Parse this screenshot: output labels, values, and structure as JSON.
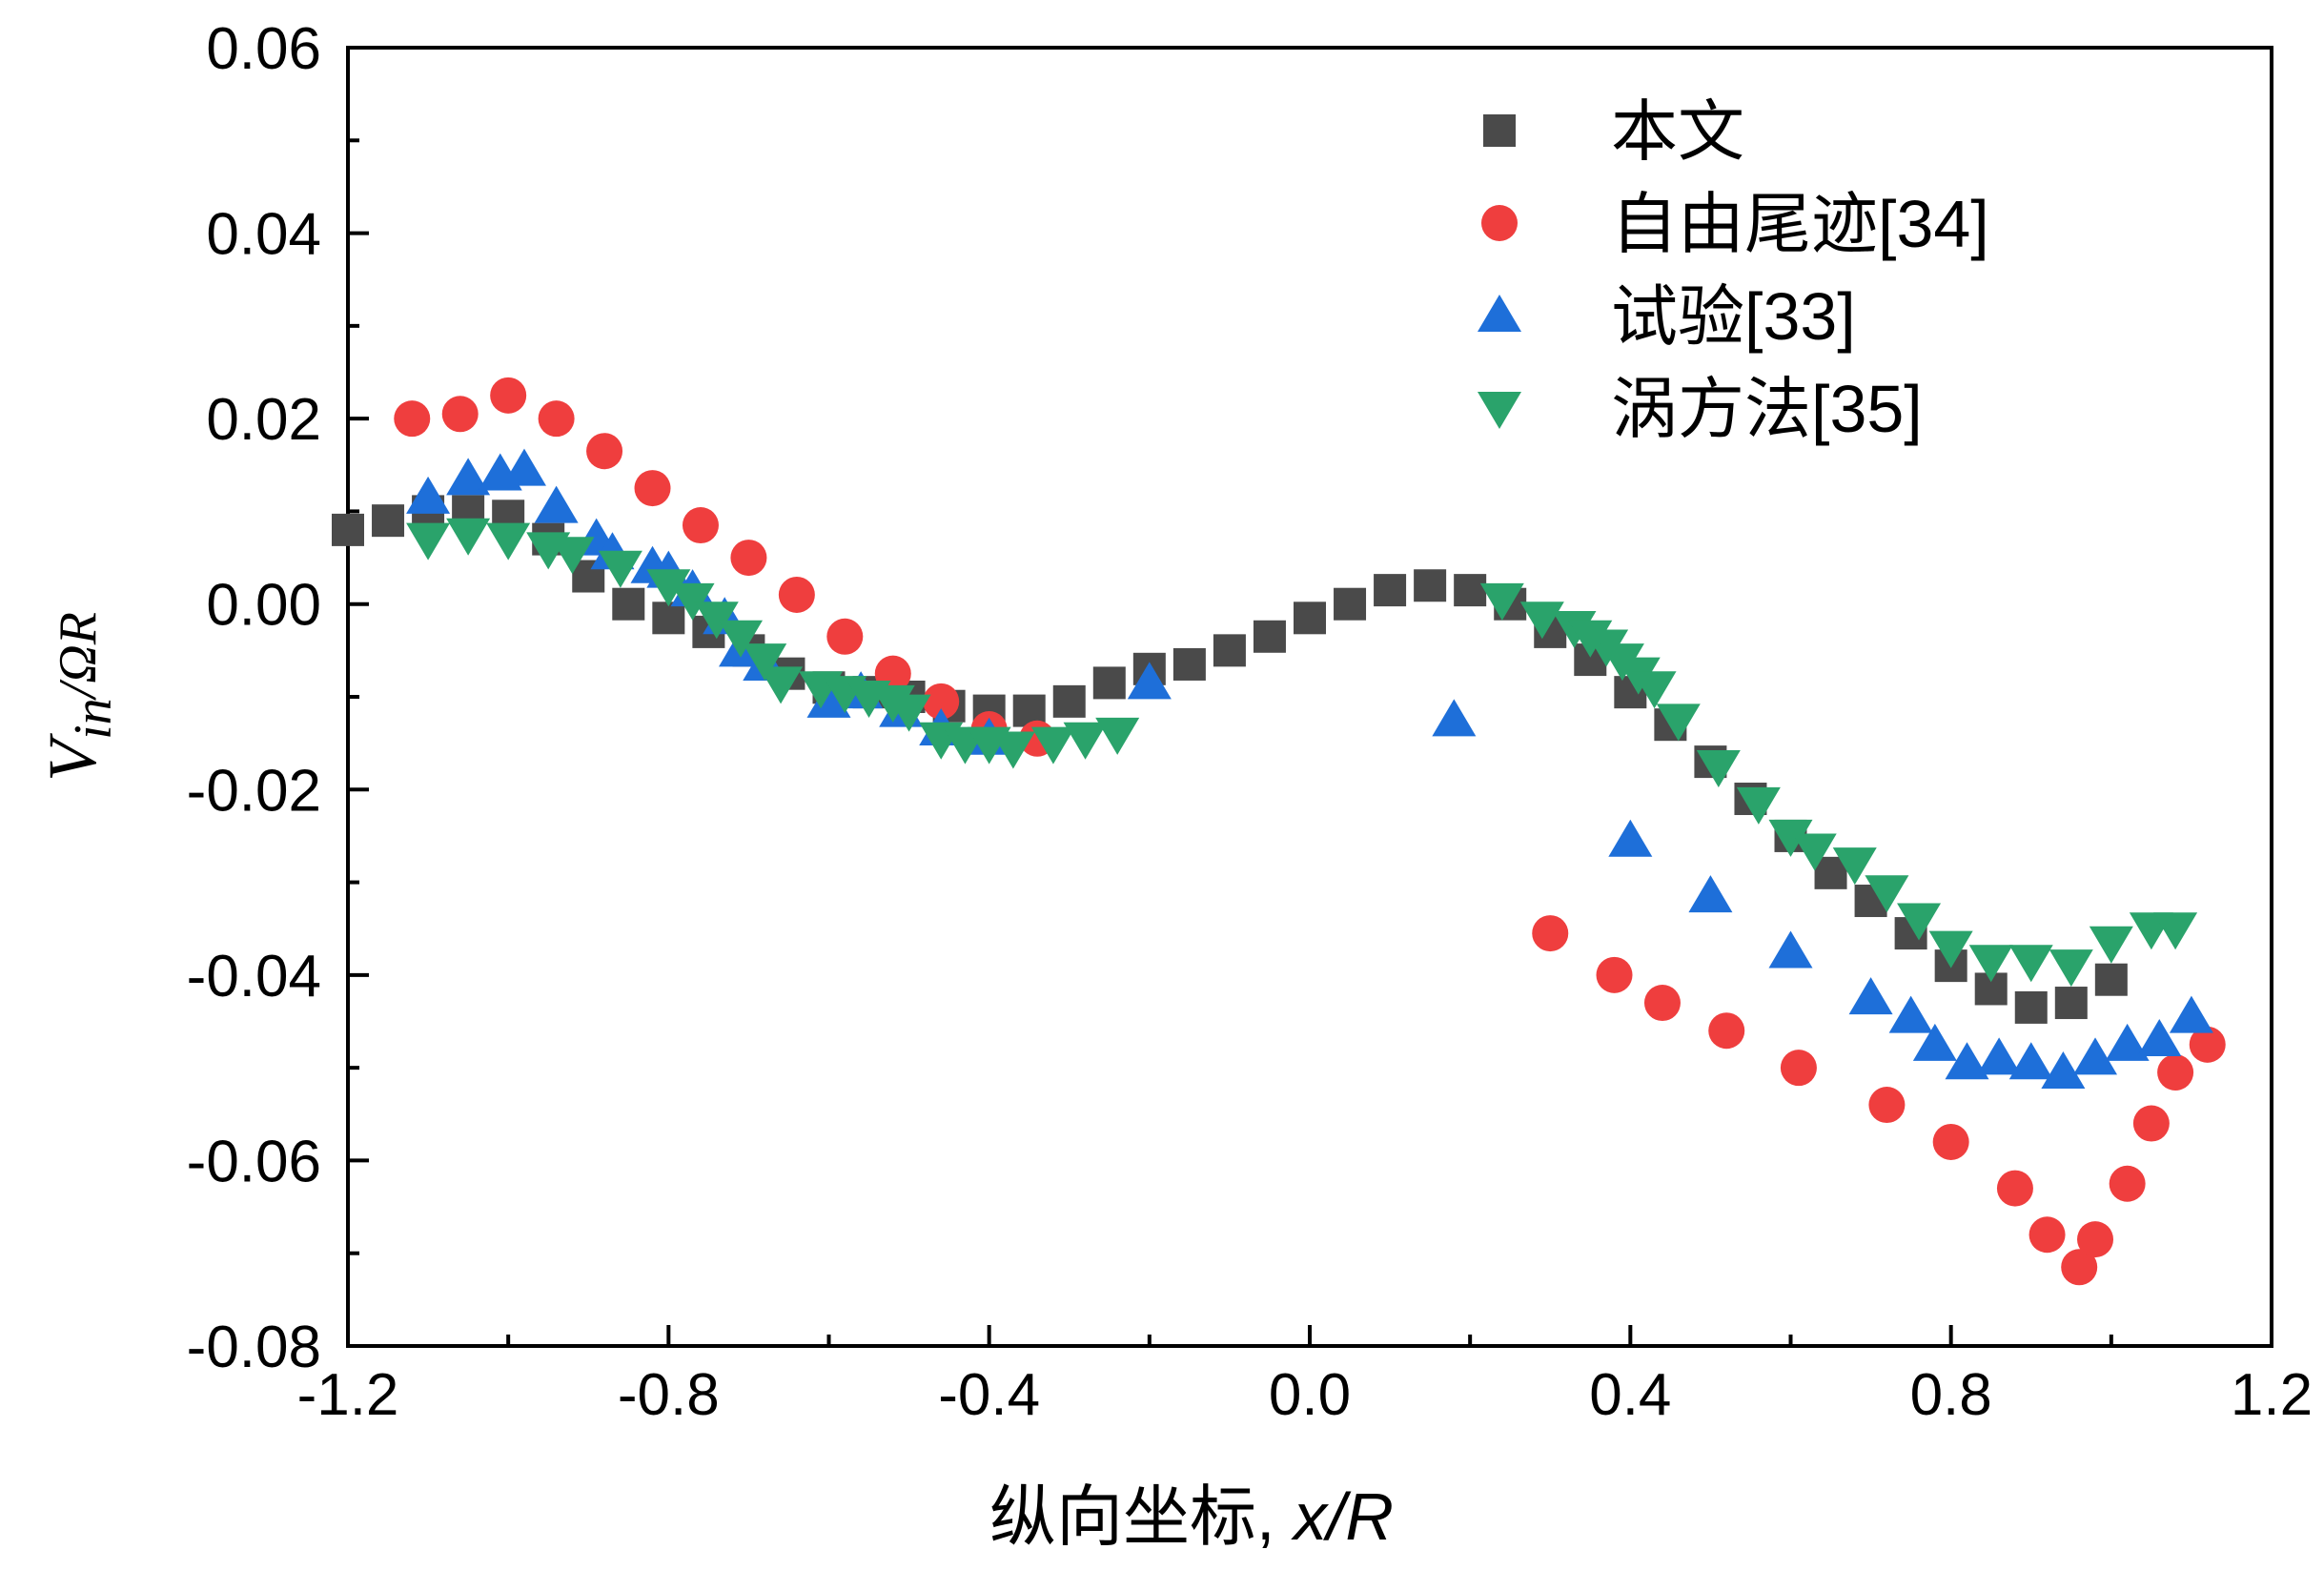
{
  "chart_data": {
    "type": "scatter",
    "xlabel_prefix": "纵向坐标, ",
    "xlabel_var": "x/R",
    "ylabel": {
      "main": "V",
      "sub": "in",
      "tail": "/ΩR"
    },
    "xlim": [
      -1.2,
      1.2
    ],
    "ylim": [
      -0.08,
      0.06
    ],
    "xticks": [
      "-1.2",
      "-0.8",
      "-0.4",
      "0.0",
      "0.4",
      "0.8",
      "1.2"
    ],
    "yticks": [
      "0.06",
      "0.04",
      "0.02",
      "0.00",
      "-0.02",
      "-0.04",
      "-0.06",
      "-0.08"
    ],
    "xtick_values": [
      -1.2,
      -0.8,
      -0.4,
      0.0,
      0.4,
      0.8,
      1.2
    ],
    "ytick_values": [
      0.06,
      0.04,
      0.02,
      0.0,
      -0.02,
      -0.04,
      -0.06,
      -0.08
    ],
    "legend_position": "top-right",
    "series": [
      {
        "name": "本文",
        "marker": "square",
        "color": "#4a4a4a",
        "x": [
          -1.2,
          -1.15,
          -1.1,
          -1.05,
          -1.0,
          -0.95,
          -0.9,
          -0.85,
          -0.8,
          -0.75,
          -0.7,
          -0.65,
          -0.6,
          -0.55,
          -0.5,
          -0.45,
          -0.4,
          -0.35,
          -0.3,
          -0.25,
          -0.2,
          -0.15,
          -0.1,
          -0.05,
          0.0,
          0.05,
          0.1,
          0.15,
          0.2,
          0.25,
          0.3,
          0.35,
          0.4,
          0.45,
          0.5,
          0.55,
          0.6,
          0.65,
          0.7,
          0.75,
          0.8,
          0.85,
          0.9,
          0.95,
          1.0
        ],
        "y": [
          0.008,
          0.009,
          0.01,
          0.01,
          0.0095,
          0.007,
          0.003,
          0.0,
          -0.0015,
          -0.003,
          -0.005,
          -0.0075,
          -0.009,
          -0.0095,
          -0.01,
          -0.011,
          -0.0115,
          -0.0115,
          -0.0105,
          -0.0085,
          -0.007,
          -0.0065,
          -0.005,
          -0.0035,
          -0.0015,
          0.0,
          0.0015,
          0.002,
          0.0015,
          0.0,
          -0.003,
          -0.006,
          -0.0095,
          -0.013,
          -0.017,
          -0.021,
          -0.025,
          -0.029,
          -0.032,
          -0.0355,
          -0.039,
          -0.0415,
          -0.0435,
          -0.043,
          -0.0405
        ]
      },
      {
        "name": "自由尾迹[34]",
        "marker": "circle",
        "color": "#ef3e3e",
        "x": [
          -1.12,
          -1.06,
          -1.0,
          -0.94,
          -0.88,
          -0.82,
          -0.76,
          -0.7,
          -0.64,
          -0.58,
          -0.52,
          -0.46,
          -0.4,
          -0.34,
          0.3,
          0.38,
          0.44,
          0.52,
          0.61,
          0.72,
          0.8,
          0.88,
          0.92,
          0.96,
          0.98,
          1.02,
          1.05,
          1.08,
          1.12
        ],
        "y": [
          0.02,
          0.0205,
          0.0225,
          0.02,
          0.0165,
          0.0125,
          0.0085,
          0.005,
          0.001,
          -0.0035,
          -0.0075,
          -0.0105,
          -0.0135,
          -0.0145,
          -0.0355,
          -0.04,
          -0.043,
          -0.046,
          -0.05,
          -0.054,
          -0.058,
          -0.063,
          -0.068,
          -0.0715,
          -0.0685,
          -0.0625,
          -0.056,
          -0.0505,
          -0.0475
        ]
      },
      {
        "name": "试验[33]",
        "marker": "triangle-up",
        "color": "#1e6fd9",
        "x": [
          -1.1,
          -1.05,
          -1.01,
          -0.98,
          -0.94,
          -0.89,
          -0.87,
          -0.82,
          -0.8,
          -0.77,
          -0.73,
          -0.71,
          -0.68,
          -0.6,
          -0.56,
          -0.51,
          -0.46,
          -0.4,
          -0.2,
          0.18,
          0.4,
          0.5,
          0.6,
          0.7,
          0.75,
          0.78,
          0.82,
          0.86,
          0.9,
          0.94,
          0.98,
          1.02,
          1.06,
          1.1
        ],
        "y": [
          0.0115,
          0.0135,
          0.014,
          0.0145,
          0.0105,
          0.007,
          0.0055,
          0.004,
          0.0035,
          0.0015,
          -0.0015,
          -0.005,
          -0.0065,
          -0.0105,
          -0.0095,
          -0.0115,
          -0.0135,
          -0.0145,
          -0.0085,
          -0.0125,
          -0.0255,
          -0.0315,
          -0.0375,
          -0.0425,
          -0.0445,
          -0.0475,
          -0.0495,
          -0.049,
          -0.0495,
          -0.0505,
          -0.049,
          -0.0475,
          -0.047,
          -0.0445
        ]
      },
      {
        "name": "涡方法[35]",
        "marker": "triangle-down",
        "color": "#2aa36b",
        "x": [
          -1.1,
          -1.05,
          -1.0,
          -0.95,
          -0.92,
          -0.86,
          -0.8,
          -0.77,
          -0.74,
          -0.71,
          -0.68,
          -0.66,
          -0.61,
          -0.58,
          -0.55,
          -0.52,
          -0.5,
          -0.46,
          -0.43,
          -0.4,
          -0.37,
          -0.32,
          -0.28,
          -0.24,
          0.24,
          0.29,
          0.33,
          0.35,
          0.37,
          0.39,
          0.41,
          0.43,
          0.46,
          0.51,
          0.56,
          0.6,
          0.63,
          0.68,
          0.72,
          0.76,
          0.8,
          0.85,
          0.9,
          0.95,
          1.0,
          1.05,
          1.08
        ],
        "y": [
          0.007,
          0.0075,
          0.007,
          0.006,
          0.0055,
          0.004,
          0.002,
          0.0005,
          -0.0015,
          -0.0035,
          -0.006,
          -0.0085,
          -0.009,
          -0.0095,
          -0.01,
          -0.0105,
          -0.0115,
          -0.0145,
          -0.015,
          -0.015,
          -0.0155,
          -0.015,
          -0.0145,
          -0.014,
          0.0005,
          -0.0015,
          -0.0025,
          -0.0035,
          -0.0045,
          -0.006,
          -0.0075,
          -0.009,
          -0.0125,
          -0.0175,
          -0.0215,
          -0.025,
          -0.0265,
          -0.028,
          -0.031,
          -0.034,
          -0.037,
          -0.0385,
          -0.0385,
          -0.039,
          -0.0365,
          -0.035,
          -0.035
        ]
      }
    ]
  }
}
